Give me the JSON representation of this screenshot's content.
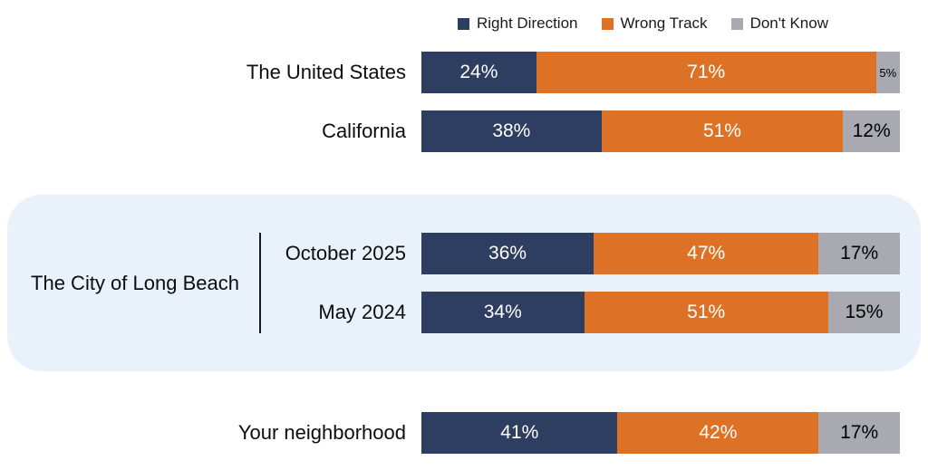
{
  "legend": {
    "items": [
      {
        "label": "Right Direction",
        "color": "#2e3e60"
      },
      {
        "label": "Wrong Track",
        "color": "#dd7226"
      },
      {
        "label": "Don't Know",
        "color": "#a9a9b2"
      }
    ]
  },
  "chart_data": {
    "type": "bar",
    "orientation": "horizontal",
    "stacked": true,
    "unit": "%",
    "xlim": [
      0,
      100
    ],
    "legend_position": "top",
    "series": [
      "Right Direction",
      "Wrong Track",
      "Don't Know"
    ],
    "colors": [
      "#2e3e60",
      "#dd7226",
      "#a9a9b2"
    ],
    "label_text_colors": [
      "#ffffff",
      "#ffffff",
      "#000000"
    ],
    "small_label_threshold": 8,
    "group_label": "The City of Long Beach",
    "highlight_box_color": "#e9f1fb",
    "rows": [
      {
        "label": "The United States",
        "group": "",
        "values": [
          24,
          71,
          5
        ],
        "display": [
          "24%",
          "71%",
          "5%"
        ]
      },
      {
        "label": "California",
        "group": "",
        "values": [
          38,
          51,
          12
        ],
        "display": [
          "38%",
          "51%",
          "12%"
        ]
      },
      {
        "label": "October 2025",
        "group": "The City of Long Beach",
        "values": [
          36,
          47,
          17
        ],
        "display": [
          "36%",
          "47%",
          "17%"
        ]
      },
      {
        "label": "May 2024",
        "group": "The City of Long Beach",
        "values": [
          34,
          51,
          15
        ],
        "display": [
          "34%",
          "51%",
          "15%"
        ]
      },
      {
        "label": "Your neighborhood",
        "group": "",
        "values": [
          41,
          42,
          17
        ],
        "display": [
          "41%",
          "42%",
          "17%"
        ]
      }
    ]
  }
}
